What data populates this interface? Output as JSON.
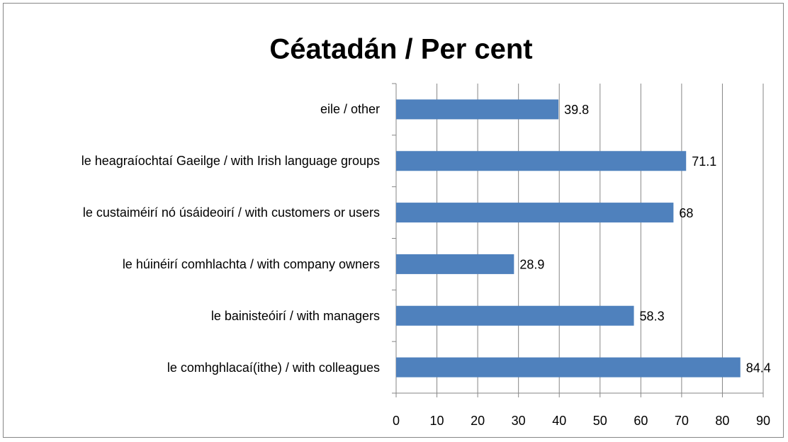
{
  "chart_data": {
    "type": "bar",
    "orientation": "horizontal",
    "title": "Céatadán / Per cent",
    "categories": [
      "eile / other",
      "le heagraíochtaí Gaeilge / with Irish language groups",
      "le custaiméirí nó úsáideoirí / with customers or users",
      "le húinéirí comhlachta / with company owners",
      "le bainisteóirí / with managers",
      "le comhghlacaí(ithe) / with colleagues"
    ],
    "values": [
      39.8,
      71.1,
      68,
      28.9,
      58.3,
      84.4
    ],
    "color": "#4f81bd",
    "xlim": [
      0,
      90
    ],
    "xticks": [
      0,
      10,
      20,
      30,
      40,
      50,
      60,
      70,
      80,
      90
    ],
    "grid": true
  }
}
